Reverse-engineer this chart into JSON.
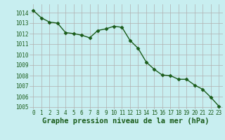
{
  "x": [
    0,
    1,
    2,
    3,
    4,
    5,
    6,
    7,
    8,
    9,
    10,
    11,
    12,
    13,
    14,
    15,
    16,
    17,
    18,
    19,
    20,
    21,
    22,
    23
  ],
  "y": [
    1014.2,
    1013.5,
    1013.1,
    1013.0,
    1012.1,
    1012.0,
    1011.85,
    1011.6,
    1012.3,
    1012.45,
    1012.7,
    1012.6,
    1011.35,
    1010.6,
    1009.3,
    1008.6,
    1008.05,
    1008.0,
    1007.65,
    1007.65,
    1007.1,
    1006.7,
    1005.95,
    1005.1
  ],
  "line_color": "#1a5c1a",
  "marker": "D",
  "marker_size": 2.5,
  "bg_color": "#c8eef0",
  "grid_color": "#b0b0b0",
  "xlabel": "Graphe pression niveau de la mer (hPa)",
  "ylim_min": 1004.8,
  "ylim_max": 1014.8,
  "xlim_min": -0.5,
  "xlim_max": 23.5,
  "yticks": [
    1005,
    1006,
    1007,
    1008,
    1009,
    1010,
    1011,
    1012,
    1013,
    1014
  ],
  "xticks": [
    0,
    1,
    2,
    3,
    4,
    5,
    6,
    7,
    8,
    9,
    10,
    11,
    12,
    13,
    14,
    15,
    16,
    17,
    18,
    19,
    20,
    21,
    22,
    23
  ],
  "tick_fontsize": 5.5,
  "xlabel_fontsize": 7.5,
  "line_width": 1.0
}
